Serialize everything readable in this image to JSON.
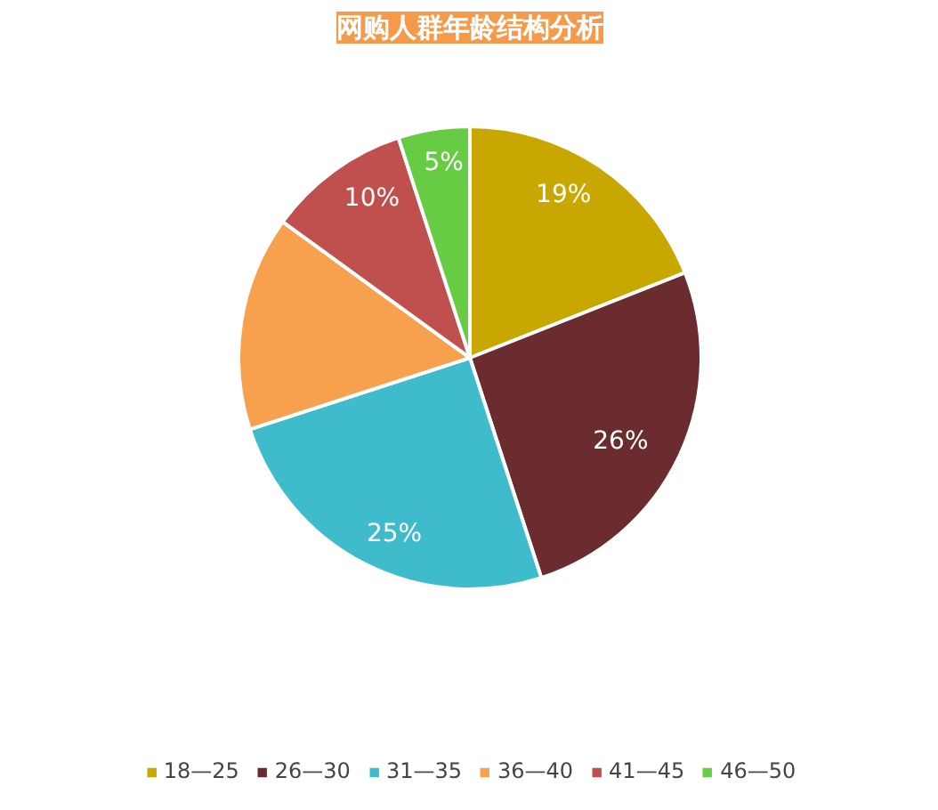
{
  "chart_data": {
    "type": "pie",
    "title": "网购人群年龄结构分析",
    "categories": [
      "18—25",
      "26—30",
      "31—35",
      "36—40",
      "41—45",
      "46—50"
    ],
    "values": [
      19,
      26,
      25,
      15,
      10,
      5
    ],
    "colors": [
      "#c8a800",
      "#6b2c2f",
      "#3fbccb",
      "#f7a14f",
      "#c0504d",
      "#66cc44"
    ],
    "value_labels": [
      "19%",
      "26%",
      "25%",
      null,
      "10%",
      "5%"
    ],
    "legend": "bottom"
  }
}
